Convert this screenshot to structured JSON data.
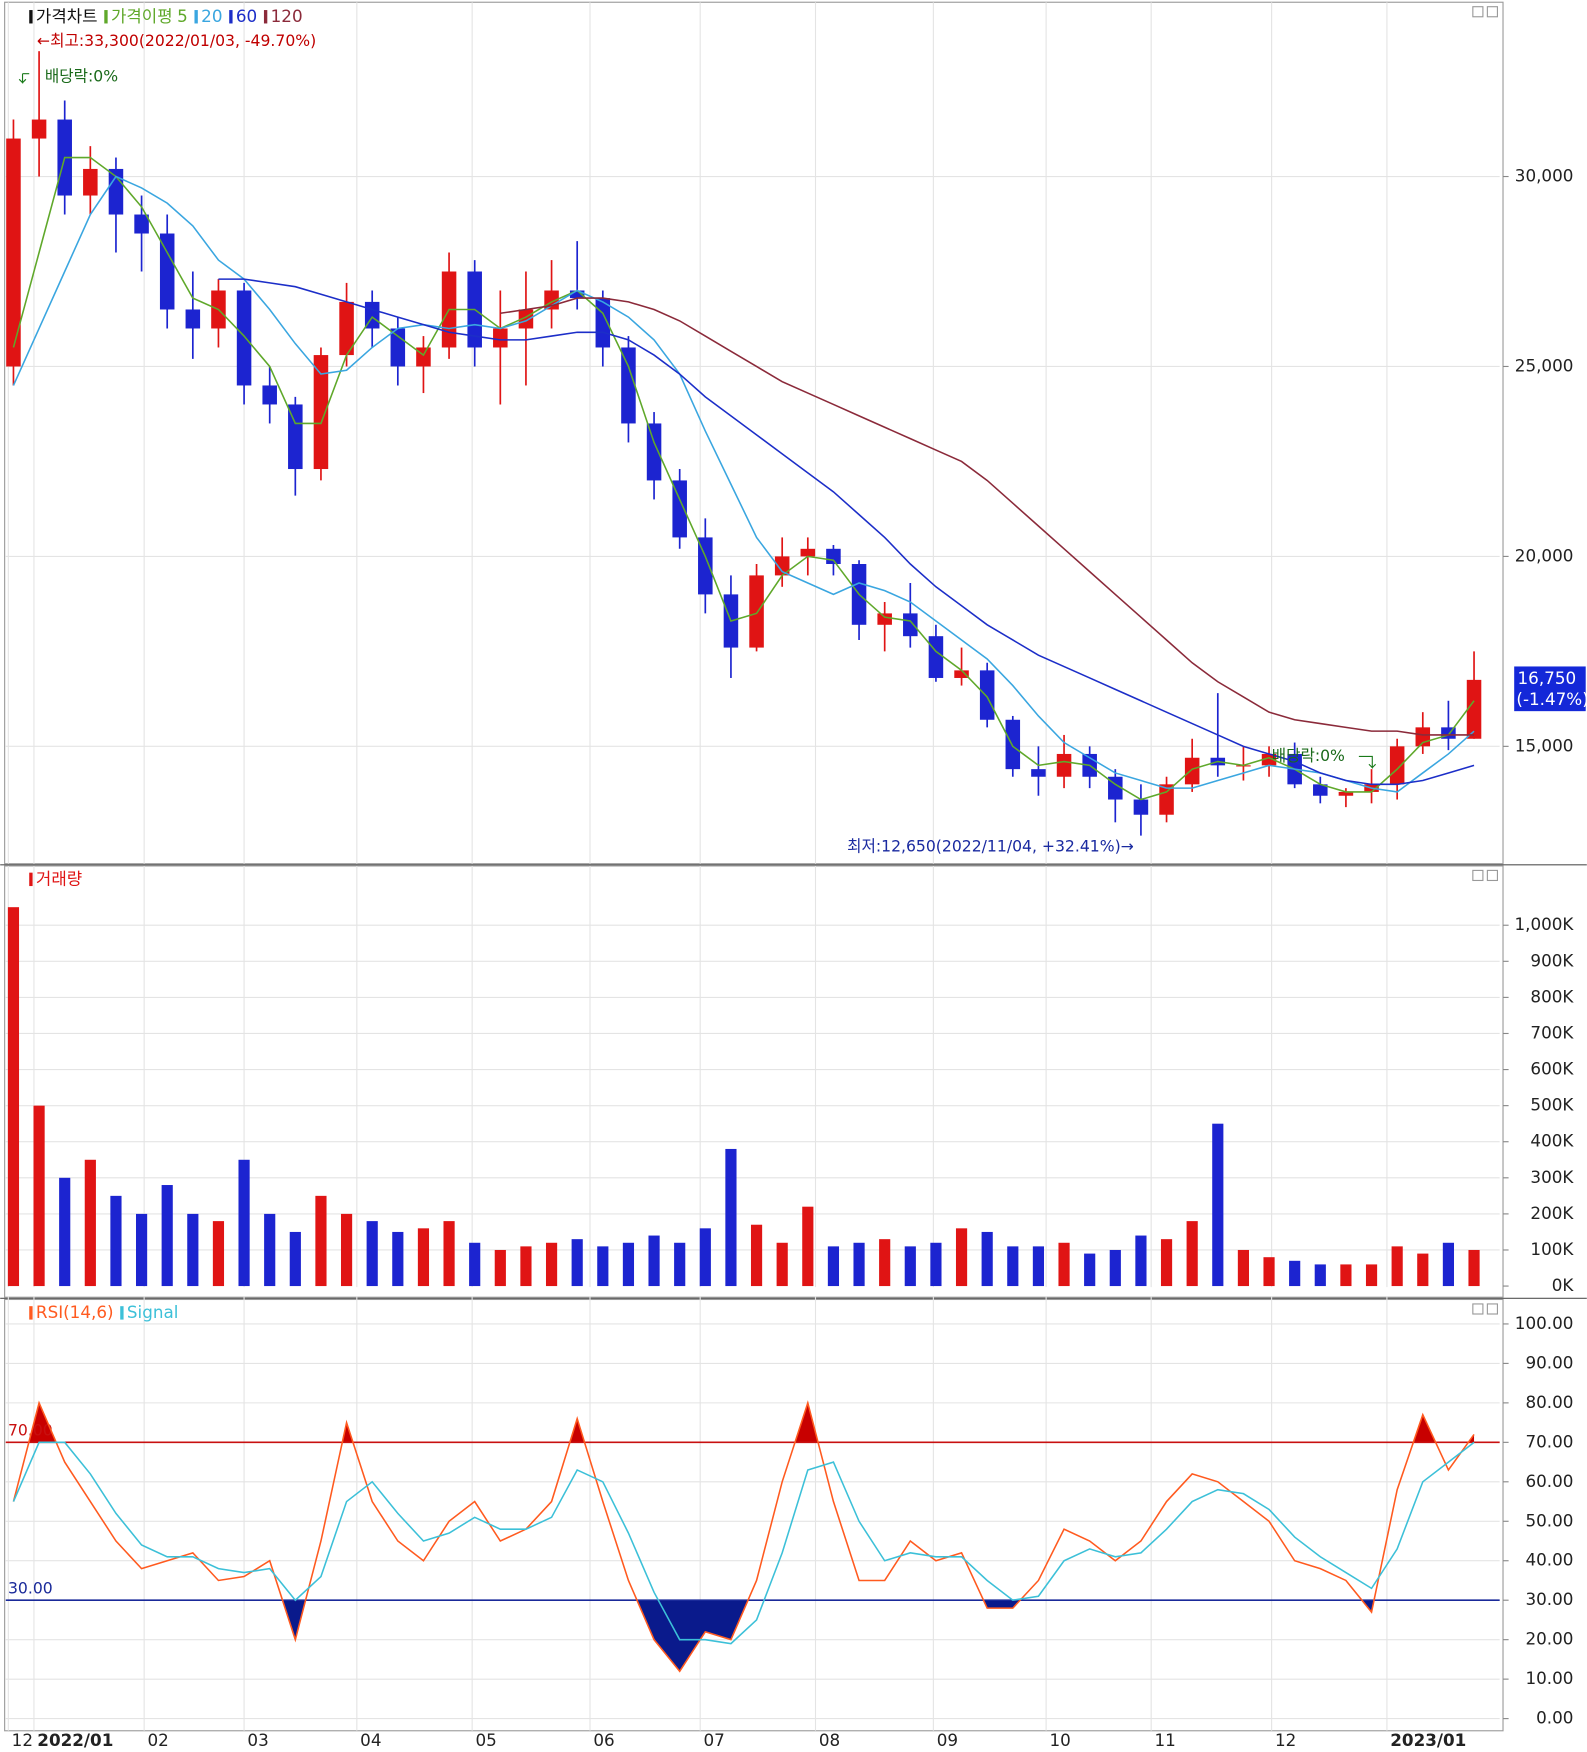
{
  "chart_data": [
    {
      "type": "candlestick",
      "title": "가격차트",
      "ma_label": "가격이평",
      "categories": [
        null,
        null,
        null,
        null,
        null,
        null,
        null,
        null,
        null,
        null,
        null,
        null,
        null,
        null,
        null,
        null,
        null,
        null,
        null,
        null,
        null,
        null,
        null,
        null,
        null,
        null,
        null,
        null,
        null,
        null,
        null,
        null,
        null,
        null,
        null,
        null,
        null,
        null,
        null,
        null,
        null,
        null,
        null,
        null,
        null,
        null,
        null,
        null,
        null,
        null,
        null,
        null,
        null,
        null,
        null,
        null,
        null,
        null
      ],
      "xlim": [
        -0.3,
        58
      ],
      "xticks": [
        {
          "value": -0.2,
          "label": "12"
        },
        {
          "value": 0.8,
          "label": "2022/01"
        },
        {
          "value": 5.1,
          "label": "02"
        },
        {
          "value": 9.0,
          "label": "03"
        },
        {
          "value": 13.4,
          "label": "04"
        },
        {
          "value": 17.9,
          "label": "05"
        },
        {
          "value": 22.5,
          "label": "06"
        },
        {
          "value": 26.8,
          "label": "07"
        },
        {
          "value": 31.3,
          "label": "08"
        },
        {
          "value": 35.9,
          "label": "09"
        },
        {
          "value": 40.3,
          "label": "10"
        },
        {
          "value": 44.4,
          "label": "11"
        },
        {
          "value": 49.1,
          "label": "12"
        },
        {
          "value": 53.6,
          "label": "2023/01"
        }
      ],
      "ylim": [
        11940,
        34500
      ],
      "yticks": [
        {
          "value": 15000,
          "label": "15,000"
        },
        {
          "value": 20000,
          "label": "20,000"
        },
        {
          "value": 25000,
          "label": "25,000"
        },
        {
          "value": 30000,
          "label": "30,000"
        }
      ],
      "grid": true,
      "up_color": "#e01414",
      "down_color": "#1c24d0",
      "open": [
        25000,
        31000,
        31500,
        29500,
        30200,
        29000,
        28500,
        26500,
        26000,
        27000,
        24500,
        24000,
        22300,
        25300,
        26700,
        26000,
        25000,
        25500,
        27500,
        25500,
        26000,
        26500,
        27000,
        26800,
        25500,
        23500,
        22000,
        20500,
        19000,
        17600,
        19500,
        20000,
        20200,
        19800,
        18200,
        18500,
        17900,
        16800,
        17000,
        15700,
        14400,
        14200,
        14800,
        14200,
        13600,
        13200,
        14000,
        14700,
        14500,
        14500,
        14800,
        14000,
        13700,
        13800,
        14000,
        15000,
        15500,
        15200
      ],
      "high": [
        31500,
        33300,
        32000,
        30800,
        30500,
        29500,
        29000,
        27500,
        27300,
        27200,
        25000,
        24200,
        25500,
        27200,
        27000,
        26300,
        25800,
        28000,
        27800,
        27000,
        27500,
        27800,
        28300,
        27000,
        25800,
        23800,
        22300,
        21000,
        19500,
        19800,
        20500,
        20500,
        20300,
        19900,
        18800,
        19300,
        18200,
        17600,
        17200,
        15800,
        15000,
        15300,
        15000,
        14400,
        14000,
        14200,
        15200,
        16400,
        15000,
        15000,
        15100,
        14200,
        13900,
        14400,
        15200,
        15900,
        16200,
        17500
      ],
      "low": [
        24500,
        30000,
        29000,
        29000,
        28000,
        27500,
        26000,
        25200,
        25500,
        24000,
        23500,
        21600,
        22000,
        25000,
        25500,
        24500,
        24300,
        25200,
        25000,
        24000,
        24500,
        26000,
        26500,
        25000,
        23000,
        21500,
        20200,
        18500,
        16800,
        17500,
        19200,
        19500,
        19500,
        17800,
        17500,
        17600,
        16700,
        16600,
        15500,
        14200,
        13700,
        13900,
        13900,
        13000,
        12650,
        13000,
        13800,
        14200,
        14100,
        14200,
        13900,
        13500,
        13400,
        13500,
        13600,
        14800,
        14900,
        15200
      ],
      "close": [
        31000,
        31500,
        29500,
        30200,
        29000,
        28500,
        26500,
        26000,
        27000,
        24500,
        24000,
        22300,
        25300,
        26700,
        26000,
        25000,
        25500,
        27500,
        25500,
        26000,
        26500,
        27000,
        26800,
        25500,
        23500,
        22000,
        20500,
        19000,
        17600,
        19500,
        20000,
        20200,
        19800,
        18200,
        18500,
        17900,
        16800,
        17000,
        15700,
        14400,
        14200,
        14800,
        14200,
        13600,
        13200,
        14000,
        14700,
        14500,
        14500,
        14800,
        14000,
        13700,
        13800,
        14000,
        15000,
        15500,
        15200,
        16750
      ],
      "moving_averages": [
        {
          "name": "5",
          "color": "#5fa82a",
          "values": [
            25500,
            28000,
            30500,
            30500,
            30000,
            29200,
            28000,
            26800,
            26500,
            25800,
            25000,
            23500,
            23500,
            25300,
            26300,
            25800,
            25300,
            26500,
            26500,
            26000,
            26300,
            26700,
            27000,
            26400,
            25000,
            23000,
            21500,
            20000,
            18300,
            18500,
            19500,
            20000,
            19900,
            19000,
            18400,
            18300,
            17500,
            17000,
            16300,
            15000,
            14500,
            14600,
            14500,
            14000,
            13600,
            13800,
            14400,
            14600,
            14500,
            14700,
            14400,
            14000,
            13800,
            13800,
            14400,
            15100,
            15300,
            16200
          ]
        },
        {
          "name": "20",
          "color": "#3aa6e0",
          "values": [
            24500,
            26000,
            27500,
            29000,
            30000,
            29700,
            29300,
            28700,
            27800,
            27300,
            26500,
            25600,
            24800,
            24900,
            25500,
            26000,
            26100,
            26000,
            26100,
            26000,
            26200,
            26600,
            27000,
            26700,
            26300,
            25700,
            24800,
            23300,
            21900,
            20500,
            19600,
            19300,
            19000,
            19300,
            19100,
            18800,
            18300,
            17800,
            17300,
            16600,
            15800,
            15100,
            14700,
            14300,
            14100,
            13900,
            13900,
            14100,
            14300,
            14500,
            14400,
            14300,
            14100,
            13900,
            13800,
            14300,
            14800,
            15400
          ]
        },
        {
          "name": "60",
          "color": "#1c2ec8",
          "values": [
            null,
            null,
            null,
            null,
            null,
            null,
            null,
            null,
            27300,
            27300,
            27200,
            27100,
            26900,
            26700,
            26500,
            26300,
            26100,
            25900,
            25800,
            25700,
            25700,
            25800,
            25900,
            25900,
            25700,
            25300,
            24800,
            24200,
            23700,
            23200,
            22700,
            22200,
            21700,
            21100,
            20500,
            19800,
            19200,
            18700,
            18200,
            17800,
            17400,
            17100,
            16800,
            16500,
            16200,
            15900,
            15600,
            15300,
            15000,
            14800,
            14600,
            14300,
            14100,
            14000,
            14000,
            14100,
            14300,
            14500
          ]
        },
        {
          "name": "120",
          "color": "#8b2a3a",
          "values": [
            null,
            null,
            null,
            null,
            null,
            null,
            null,
            null,
            null,
            null,
            null,
            null,
            null,
            null,
            null,
            null,
            null,
            null,
            null,
            26400,
            26500,
            26600,
            26800,
            26800,
            26700,
            26500,
            26200,
            25800,
            25400,
            25000,
            24600,
            24300,
            24000,
            23700,
            23400,
            23100,
            22800,
            22500,
            22000,
            21400,
            20800,
            20200,
            19600,
            19000,
            18400,
            17800,
            17200,
            16700,
            16300,
            15900,
            15700,
            15600,
            15500,
            15400,
            15400,
            15300,
            15300,
            15300
          ]
        }
      ],
      "annotations": [
        "←최고:33,300(2022/01/03, -49.70%)",
        "배당락:0%",
        "배당락:0%",
        "최저:12,650(2022/11/04, +32.41%)→"
      ],
      "last_price": {
        "value": 16750,
        "label": "16,750"
      },
      "last_change": "(-1.47%)"
    },
    {
      "type": "bar",
      "title": "거래량",
      "color": "#e01414",
      "ylim": [
        0,
        1155000
      ],
      "yticks": [
        {
          "value": 0,
          "label": "0K"
        },
        {
          "value": 100000,
          "label": "100K"
        },
        {
          "value": 200000,
          "label": "200K"
        },
        {
          "value": 300000,
          "label": "300K"
        },
        {
          "value": 400000,
          "label": "400K"
        },
        {
          "value": 500000,
          "label": "500K"
        },
        {
          "value": 600000,
          "label": "600K"
        },
        {
          "value": 700000,
          "label": "700K"
        },
        {
          "value": 800000,
          "label": "800K"
        },
        {
          "value": 900000,
          "label": "900K"
        },
        {
          "value": 1000000,
          "label": "1,000K"
        }
      ],
      "values": [
        1050000,
        500000,
        300000,
        350000,
        250000,
        200000,
        280000,
        200000,
        180000,
        350000,
        200000,
        150000,
        250000,
        200000,
        180000,
        150000,
        160000,
        180000,
        120000,
        100000,
        110000,
        120000,
        130000,
        110000,
        120000,
        140000,
        120000,
        160000,
        380000,
        170000,
        120000,
        220000,
        110000,
        120000,
        130000,
        110000,
        120000,
        160000,
        150000,
        110000,
        110000,
        120000,
        90000,
        100000,
        140000,
        130000,
        180000,
        450000,
        100000,
        80000,
        70000,
        60000,
        60000,
        60000,
        110000,
        90000,
        120000,
        100000
      ]
    },
    {
      "type": "line",
      "ylim": [
        -2.8,
        106.2
      ],
      "yticks": [
        {
          "value": 0,
          "label": "0.00"
        },
        {
          "value": 10,
          "label": "10.00"
        },
        {
          "value": 20,
          "label": "20.00"
        },
        {
          "value": 30,
          "label": "30.00"
        },
        {
          "value": 40,
          "label": "40.00"
        },
        {
          "value": 50,
          "label": "50.00"
        },
        {
          "value": 60,
          "label": "60.00"
        },
        {
          "value": 70,
          "label": "70.00"
        },
        {
          "value": 80,
          "label": "80.00"
        },
        {
          "value": 90,
          "label": "90.00"
        },
        {
          "value": 100,
          "label": "100.00"
        }
      ],
      "reference_lines": [
        {
          "value": 70,
          "label": "70.00",
          "color": "#c81010",
          "fill_color": "#c80000",
          "side": "above"
        },
        {
          "value": 30,
          "label": "30.00",
          "color": "#1a2a9a",
          "fill_color": "#0a1a8c",
          "side": "below"
        }
      ],
      "series": [
        {
          "name": "RSI(14,6)",
          "color": "#ff5a1f",
          "values": [
            55,
            80,
            65,
            55,
            45,
            38,
            40,
            42,
            35,
            36,
            40,
            20,
            45,
            75,
            55,
            45,
            40,
            50,
            55,
            45,
            48,
            55,
            76,
            55,
            35,
            20,
            12,
            22,
            20,
            35,
            60,
            80,
            55,
            35,
            35,
            45,
            40,
            42,
            28,
            28,
            35,
            48,
            45,
            40,
            45,
            55,
            62,
            60,
            55,
            50,
            40,
            38,
            35,
            27,
            58,
            77,
            63,
            72
          ]
        },
        {
          "name": "Signal",
          "color": "#3cc0d8",
          "values": [
            55,
            70,
            70,
            62,
            52,
            44,
            41,
            41,
            38,
            37,
            38,
            30,
            36,
            55,
            60,
            52,
            45,
            47,
            51,
            48,
            48,
            51,
            63,
            60,
            47,
            32,
            20,
            20,
            19,
            25,
            42,
            63,
            65,
            50,
            40,
            42,
            41,
            41,
            35,
            30,
            31,
            40,
            43,
            41,
            42,
            48,
            55,
            58,
            57,
            53,
            46,
            41,
            37,
            33,
            43,
            60,
            65,
            70
          ]
        }
      ]
    }
  ]
}
